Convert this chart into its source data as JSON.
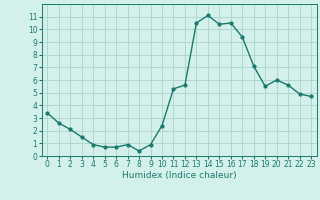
{
  "x": [
    0,
    1,
    2,
    3,
    4,
    5,
    6,
    7,
    8,
    9,
    10,
    11,
    12,
    13,
    14,
    15,
    16,
    17,
    18,
    19,
    20,
    21,
    22,
    23
  ],
  "y": [
    3.4,
    2.6,
    2.1,
    1.5,
    0.9,
    0.7,
    0.7,
    0.9,
    0.4,
    0.9,
    2.4,
    5.3,
    5.6,
    10.5,
    11.1,
    10.4,
    10.5,
    9.4,
    7.1,
    5.5,
    6.0,
    5.6,
    4.9,
    4.7
  ],
  "line_color": "#1a7a6e",
  "marker": "o",
  "marker_size": 2,
  "line_width": 1.0,
  "bg_color": "#d4f0ea",
  "grid_color": "#aad4cc",
  "xlabel": "Humidex (Indice chaleur)",
  "xlim": [
    -0.5,
    23.5
  ],
  "ylim": [
    0,
    12
  ],
  "yticks": [
    0,
    1,
    2,
    3,
    4,
    5,
    6,
    7,
    8,
    9,
    10,
    11
  ],
  "xticks": [
    0,
    1,
    2,
    3,
    4,
    5,
    6,
    7,
    8,
    9,
    10,
    11,
    12,
    13,
    14,
    15,
    16,
    17,
    18,
    19,
    20,
    21,
    22,
    23
  ],
  "label_fontsize": 6.5,
  "tick_fontsize": 5.5
}
